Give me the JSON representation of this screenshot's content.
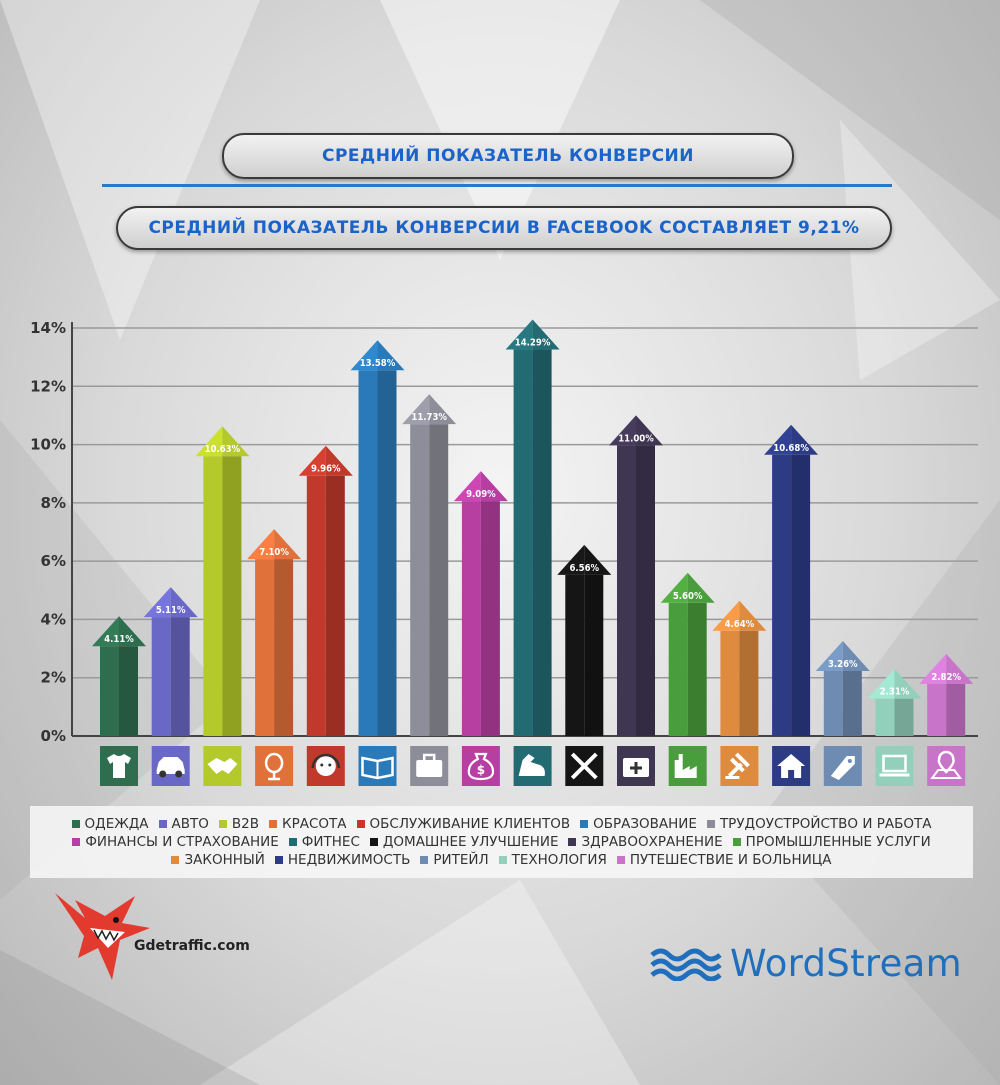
{
  "header": {
    "title": "СРЕДНИЙ ПОКАЗАТЕЛЬ КОНВЕРСИИ",
    "subtitle": "СРЕДНИЙ ПОКАЗАТЕЛЬ КОНВЕРСИИ В FACEBOOK СОСТАВЛЯЕТ 9,21%"
  },
  "chart_data": {
    "type": "bar",
    "categories": [
      "ОДЕЖДА",
      "АВТО",
      "B2B",
      "КРАСОТА",
      "ОБСЛУЖИВАНИЕ КЛИЕНТОВ",
      "ОБРАЗОВАНИЕ",
      "ТРУДОУСТРОЙСТВО И РАБОТА",
      "ФИНАНСЫ И СТРАХОВАНИЕ",
      "ФИТНЕС",
      "ДОМАШНЕЕ УЛУЧШЕНИЕ",
      "ЗДРАВООХРАНЕНИЕ",
      "ПРОМЫШЛЕННЫЕ УСЛУГИ",
      "ЗАКОННЫЙ",
      "НЕДВИЖИМОСТЬ",
      "РИТЕЙЛ",
      "ТЕХНОЛОГИЯ",
      "ПУТЕШЕСТВИЕ И БОЛЬНИЦА"
    ],
    "values": [
      4.11,
      5.11,
      10.63,
      7.1,
      9.96,
      13.58,
      11.73,
      9.09,
      14.29,
      6.56,
      11.0,
      5.6,
      4.64,
      10.68,
      3.26,
      2.31,
      2.82
    ],
    "value_labels": [
      "4.11%",
      "5.11%",
      "10.63%",
      "7.10%",
      "9.96%",
      "13.58%",
      "11.73%",
      "9.09%",
      "14.29%",
      "6.56%",
      "11.00%",
      "5.60%",
      "4.64%",
      "10.68%",
      "3.26%",
      "2.31%",
      "2.82%"
    ],
    "colors": [
      "#2e6e4f",
      "#6a68c6",
      "#b4c92b",
      "#e0713b",
      "#c0392b",
      "#2a7ab9",
      "#8e8e9a",
      "#b63fa1",
      "#236b73",
      "#151515",
      "#3f3652",
      "#4a9d3c",
      "#df8b3f",
      "#2c3b84",
      "#6e8bb2",
      "#92d0bc",
      "#c874c9"
    ],
    "icons": [
      "tshirt-icon",
      "car-icon",
      "handshake-icon",
      "mirror-icon",
      "headset-icon",
      "book-icon",
      "briefcase-icon",
      "money-bag-icon",
      "muscle-icon",
      "tools-icon",
      "first-aid-icon",
      "factory-icon",
      "gavel-icon",
      "house-icon",
      "tag-icon",
      "laptop-icon",
      "map-pin-icon"
    ],
    "yticks": [
      "0%",
      "2%",
      "4%",
      "6%",
      "8%",
      "10%",
      "12%",
      "14%"
    ],
    "ylim": [
      0,
      14
    ],
    "grid": true,
    "legend": "bottom"
  },
  "footer": {
    "left_brand": "Gdetraffic.com",
    "right_brand": "WordStream"
  }
}
